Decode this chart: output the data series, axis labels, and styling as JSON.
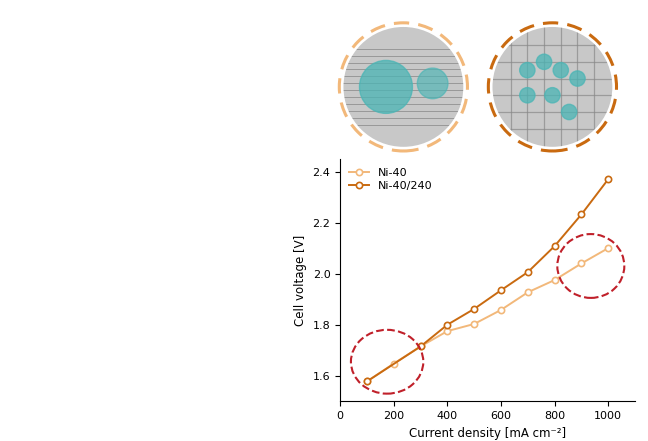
{
  "ni40_x": [
    100,
    200,
    300,
    400,
    500,
    600,
    700,
    800,
    900,
    1000
  ],
  "ni40_y": [
    1.578,
    1.648,
    1.715,
    1.775,
    1.803,
    1.858,
    1.927,
    1.975,
    2.04,
    2.1
  ],
  "ni40_240_x": [
    100,
    300,
    400,
    500,
    600,
    700,
    800,
    900,
    1000
  ],
  "ni40_240_y": [
    1.578,
    1.715,
    1.8,
    1.862,
    1.935,
    2.006,
    2.108,
    2.232,
    2.37
  ],
  "ni40_color": "#f2b87a",
  "ni40_240_color": "#c96a10",
  "xlabel": "Current density [mA cm⁻²]",
  "ylabel": "Cell voltage [V]",
  "xlim": [
    0,
    1100
  ],
  "ylim": [
    1.5,
    2.45
  ],
  "xticks": [
    0,
    200,
    400,
    600,
    800,
    1000
  ],
  "yticks": [
    1.6,
    1.8,
    2.0,
    2.2,
    2.4
  ],
  "legend_labels": [
    "Ni-40",
    "Ni-40/240"
  ],
  "circle_color": "#c0202a",
  "inset_left_border": "#f2b87a",
  "inset_right_border": "#c96a10",
  "bg_gray": "#c8c8c8",
  "teal": "#4ab5b5"
}
